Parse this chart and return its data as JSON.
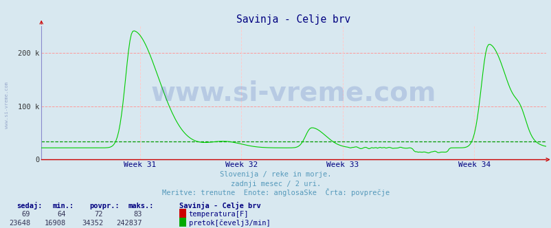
{
  "title": "Savinja - Celje brv",
  "title_color": "#000080",
  "bg_color": "#d8e8f0",
  "grid_color_h": "#ff9999",
  "grid_color_v": "#ffcccc",
  "line_color": "#00cc00",
  "avg_line_color": "#009900",
  "x_axis_color": "#cc0000",
  "y_axis_color": "#8888cc",
  "week_labels": [
    "Week 31",
    "Week 32",
    "Week 33",
    "Week 34"
  ],
  "week_label_color": "#000080",
  "subtitle1": "Slovenija / reke in morje.",
  "subtitle2": "zadnji mesec / 2 uri.",
  "subtitle3": "Meritve: trenutne  Enote: anglosaSke  Crta: povprecje",
  "subtitle_color": "#5599bb",
  "watermark": "www.si-vreme.com",
  "watermark_color": "#2244aa",
  "watermark_alpha": 0.18,
  "legend_title": "Savinja - Celje brv",
  "legend_title_color": "#000080",
  "legend_color": "#000080",
  "legend_items": [
    {
      "label": "temperatura[F]",
      "color": "#cc0000"
    },
    {
      "label": "pretok[čevelj3/min]",
      "color": "#00aa00"
    }
  ],
  "stats_headers": [
    "sedaj:",
    "min.:",
    "povpr.:",
    "maks.:"
  ],
  "stats_temp": [
    "69",
    "64",
    "72",
    "83"
  ],
  "stats_flow": [
    "23648",
    "16908",
    "34352",
    "242837"
  ],
  "ylim": [
    0,
    250000
  ],
  "ytick_labels": [
    "0",
    "100 k",
    "200 k"
  ],
  "ytick_vals": [
    0,
    100000,
    200000
  ],
  "avg_value": 34352,
  "watermark_fontsize": 28
}
